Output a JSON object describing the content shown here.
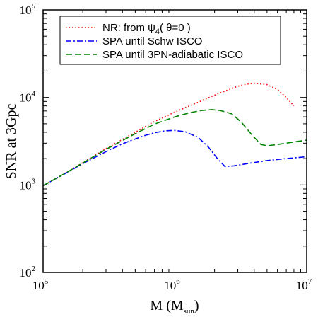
{
  "chart_data": {
    "type": "line",
    "xscale": "log",
    "yscale": "log",
    "xlim": [
      100000,
      10000000
    ],
    "ylim": [
      100,
      100000
    ],
    "xlabel_main": "M (M",
    "xlabel_sub": "sun",
    "xlabel_close": ")",
    "ylabel": "SNR at 3Gpc",
    "x_ticks": [
      {
        "base": "10",
        "exp": "5",
        "value": 100000
      },
      {
        "base": "10",
        "exp": "6",
        "value": 1000000
      },
      {
        "base": "10",
        "exp": "7",
        "value": 10000000
      }
    ],
    "y_ticks": [
      {
        "base": "10",
        "exp": "2",
        "value": 100
      },
      {
        "base": "10",
        "exp": "3",
        "value": 1000
      },
      {
        "base": "10",
        "exp": "4",
        "value": 10000
      },
      {
        "base": "10",
        "exp": "5",
        "value": 100000
      }
    ],
    "legend_position": "top-left",
    "series": [
      {
        "name": "NR: from ψ4( θ=0 )",
        "name_main": "NR: from ψ",
        "name_sub": "4",
        "name_rest": "( θ=0 )",
        "color": "#ff0000",
        "dash": "dotted",
        "points": [
          [
            100000,
            980
          ],
          [
            150000,
            1380
          ],
          [
            200000,
            1800
          ],
          [
            300000,
            2600
          ],
          [
            500000,
            4000
          ],
          [
            700000,
            5300
          ],
          [
            1000000,
            6800
          ],
          [
            1500000,
            8800
          ],
          [
            2000000,
            10600
          ],
          [
            2500000,
            12100
          ],
          [
            3000000,
            13400
          ],
          [
            3500000,
            14200
          ],
          [
            4000000,
            14500
          ],
          [
            5000000,
            14000
          ],
          [
            6000000,
            12300
          ],
          [
            7000000,
            10000
          ],
          [
            8000000,
            8000
          ]
        ]
      },
      {
        "name": "SPA until Schw ISCO",
        "color": "#0000ff",
        "dash": "dashdot",
        "points": [
          [
            100000,
            980
          ],
          [
            150000,
            1370
          ],
          [
            200000,
            1750
          ],
          [
            300000,
            2400
          ],
          [
            400000,
            2950
          ],
          [
            500000,
            3350
          ],
          [
            600000,
            3700
          ],
          [
            700000,
            3950
          ],
          [
            850000,
            4150
          ],
          [
            1000000,
            4200
          ],
          [
            1200000,
            4050
          ],
          [
            1500000,
            3500
          ],
          [
            1800000,
            2700
          ],
          [
            2100000,
            2000
          ],
          [
            2400000,
            1620
          ],
          [
            2800000,
            1650
          ],
          [
            3500000,
            1750
          ],
          [
            5000000,
            1900
          ],
          [
            7000000,
            2000
          ],
          [
            10000000,
            2100
          ]
        ]
      },
      {
        "name": "SPA until 3PN-adiabatic ISCO",
        "color": "#008000",
        "dash": "dashed",
        "points": [
          [
            100000,
            980
          ],
          [
            150000,
            1380
          ],
          [
            200000,
            1780
          ],
          [
            300000,
            2550
          ],
          [
            500000,
            3850
          ],
          [
            700000,
            4950
          ],
          [
            1000000,
            6000
          ],
          [
            1300000,
            6700
          ],
          [
            1600000,
            7100
          ],
          [
            1900000,
            7250
          ],
          [
            2200000,
            7100
          ],
          [
            2700000,
            6500
          ],
          [
            3200000,
            5200
          ],
          [
            3800000,
            3800
          ],
          [
            4500000,
            2900
          ],
          [
            5000000,
            2800
          ],
          [
            6000000,
            2900
          ],
          [
            8000000,
            3100
          ],
          [
            10000000,
            3250
          ]
        ]
      }
    ]
  }
}
